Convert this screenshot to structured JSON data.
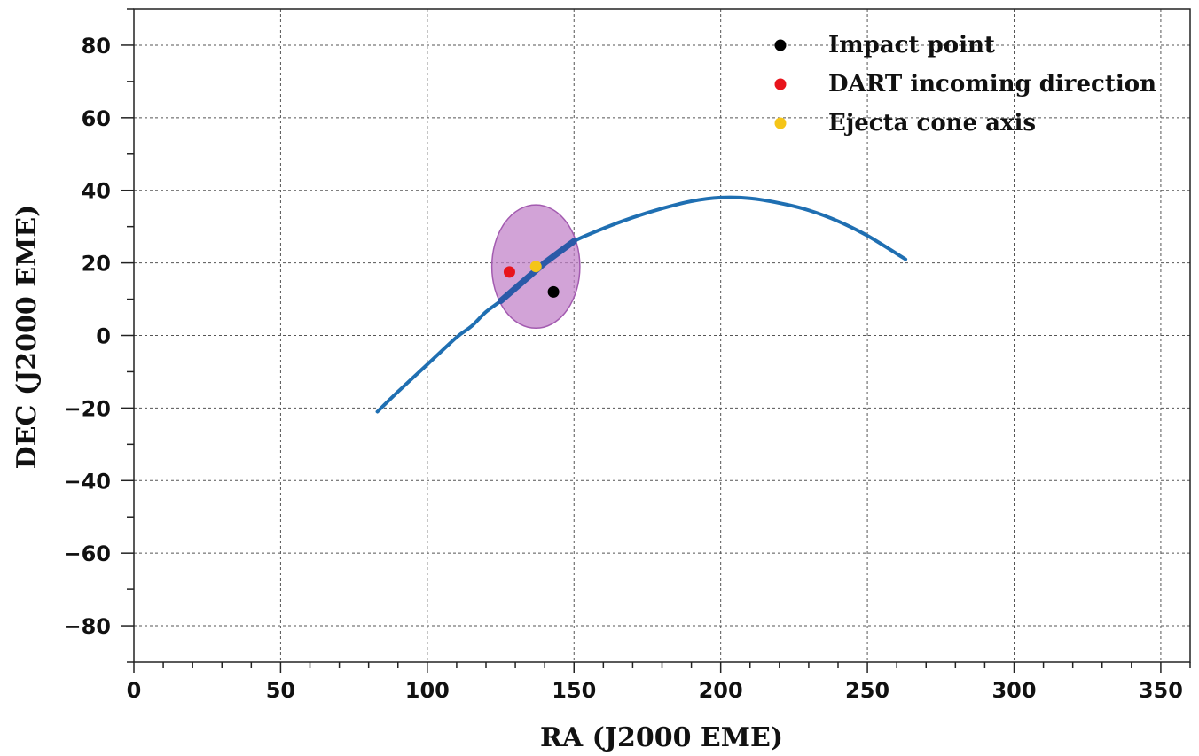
{
  "chart_data": {
    "type": "scatter",
    "xlabel": "RA (J2000 EME)",
    "ylabel": "DEC (J2000 EME)",
    "xlim": [
      0,
      360
    ],
    "ylim": [
      -90,
      90
    ],
    "x_ticks": [
      0,
      50,
      100,
      150,
      200,
      250,
      300,
      350
    ],
    "y_ticks": [
      80,
      60,
      40,
      20,
      0,
      -20,
      -40,
      -60,
      -80
    ],
    "grid": true,
    "legend_position": "top-right",
    "curve": {
      "color": "#1f6fb2",
      "points": [
        [
          83,
          -21
        ],
        [
          90,
          -15.5
        ],
        [
          100,
          -8
        ],
        [
          110,
          -0.5
        ],
        [
          115,
          2.5
        ],
        [
          120,
          6.5
        ],
        [
          125,
          9.5
        ],
        [
          130,
          13
        ],
        [
          135,
          16.5
        ],
        [
          140,
          20
        ],
        [
          145,
          23
        ],
        [
          150,
          26
        ],
        [
          160,
          29.5
        ],
        [
          170,
          32.5
        ],
        [
          180,
          35
        ],
        [
          190,
          37
        ],
        [
          200,
          38
        ],
        [
          210,
          37.8
        ],
        [
          220,
          36.5
        ],
        [
          230,
          34.5
        ],
        [
          240,
          31.5
        ],
        [
          250,
          27.5
        ],
        [
          263,
          21
        ]
      ]
    },
    "ellipse": {
      "center": [
        137,
        19
      ],
      "radius_ra": 15,
      "radius_dec": 17,
      "fill": "#c17fc8",
      "stroke": "#a35bb0"
    },
    "series": [
      {
        "name": "Impact point",
        "color": "#000000",
        "x": [
          143
        ],
        "y": [
          12
        ]
      },
      {
        "name": "DART incoming direction",
        "color": "#e8141c",
        "x": [
          128
        ],
        "y": [
          17.5
        ]
      },
      {
        "name": "Ejecta cone axis",
        "color": "#f5c518",
        "x": [
          137
        ],
        "y": [
          19
        ]
      }
    ]
  }
}
